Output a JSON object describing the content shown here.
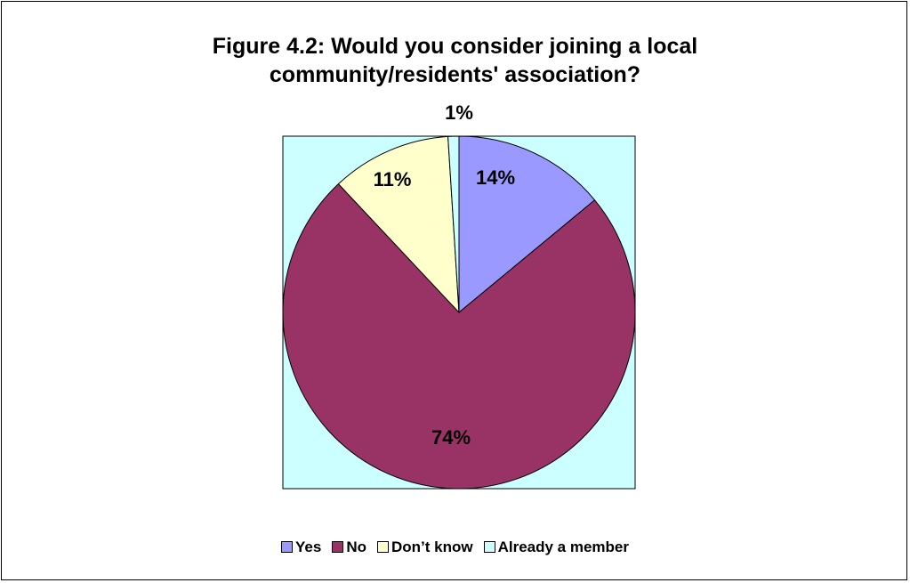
{
  "chart_data": {
    "type": "pie",
    "title_lines": [
      "Figure 4.2: Would you consider joining a local",
      "community/residents' association?"
    ],
    "slices": [
      {
        "label": "Yes",
        "value": 14,
        "display": "14%",
        "color": "#9999FF"
      },
      {
        "label": "No",
        "value": 74,
        "display": "74%",
        "color": "#993366"
      },
      {
        "label": "Don’t know",
        "value": 11,
        "display": "11%",
        "color": "#FFFFCC"
      },
      {
        "label": "Already a member",
        "value": 1,
        "display": "1%",
        "color": "#CCFFFF"
      }
    ],
    "plot_area_color": "#CCFFFF",
    "legend_position": "bottom"
  }
}
